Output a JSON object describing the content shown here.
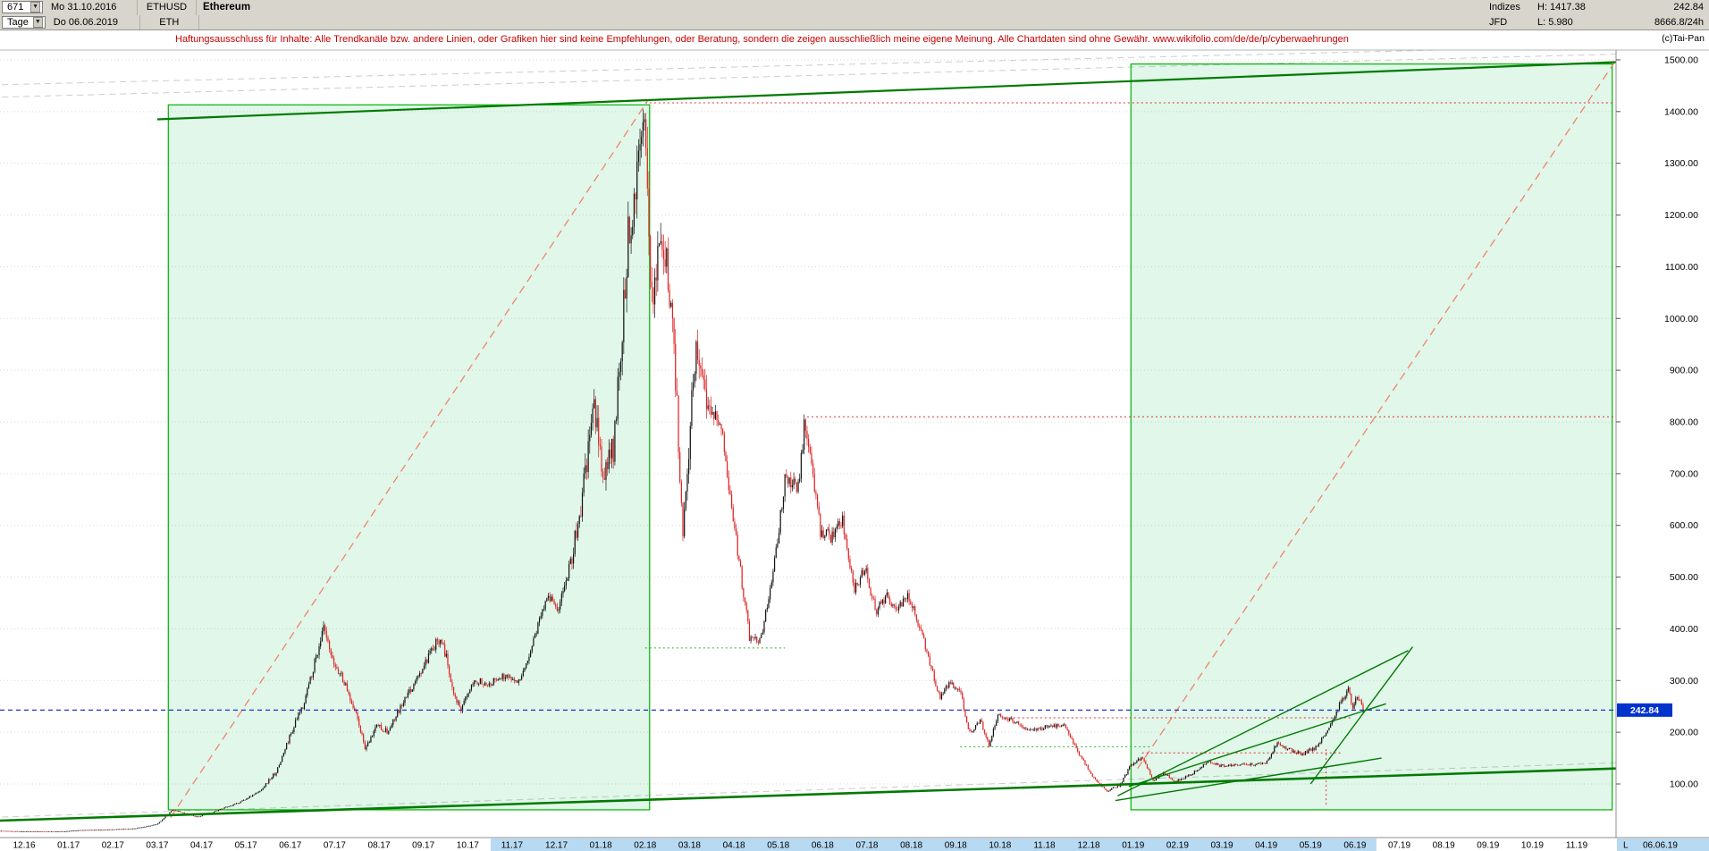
{
  "header": {
    "bars_count": "671",
    "start_date": "Mo 31.10.2016",
    "symbol": "ETHUSD",
    "name": "Ethereum",
    "timeframe": "Tage",
    "end_date": "Do 06.06.2019",
    "symbol_short": "ETH",
    "group": "Indizes",
    "high": "H: 1417.38",
    "feed": "JFD",
    "low": "L: 5.980",
    "last_price": "242.84",
    "volume": "8666.8/24h"
  },
  "disclaimer": "Haftungsausschluss für Inhalte: Alle Trendkanäle bzw. andere Linien, oder Grafiken hier sind keine Empfehlungen, oder Beratung, sondern die zeigen ausschließlich meine eigene Meinung. Alle Chartdaten sind ohne Gewähr.  www.wikifolio.com/de/de/p/cyberwaehrungen",
  "copyright": "(c)Tai-Pan",
  "chart_data": {
    "type": "candlestick",
    "symbol": "ETHUSD",
    "timeframe": "daily",
    "bars": 671,
    "period_high": 1417.38,
    "period_low": 5.98,
    "last_price": 242.84,
    "y_axis": {
      "min": 0,
      "max": 1520,
      "tick_step": 100,
      "ticks": [
        100,
        200,
        300,
        400,
        500,
        600,
        700,
        800,
        900,
        1000,
        1100,
        1200,
        1300,
        1400,
        1500
      ]
    },
    "x_axis": {
      "labels": [
        "12.16",
        "01.17",
        "02.17",
        "03.17",
        "04.17",
        "05.17",
        "06.17",
        "07.17",
        "08.17",
        "09.17",
        "10.17",
        "11.17",
        "12.17",
        "01.18",
        "02.18",
        "03.18",
        "04.18",
        "05.18",
        "06.18",
        "07.18",
        "08.18",
        "09.18",
        "10.18",
        "11.18",
        "12.18",
        "01.19",
        "02.19",
        "03.19",
        "04.19",
        "05.19",
        "06.19",
        "07.19",
        "08.19",
        "09.19",
        "10.19",
        "11.19"
      ],
      "highlight_from_index": 11,
      "highlight_to_index": 30,
      "last_marker": "L",
      "last_date": "06.06.19"
    },
    "price_path": [
      [
        -0.6,
        9.5
      ],
      [
        0,
        8.2
      ],
      [
        0.9,
        8.3
      ],
      [
        1.2,
        10.5
      ],
      [
        2.0,
        12
      ],
      [
        2.5,
        14
      ],
      [
        3.0,
        22
      ],
      [
        3.35,
        50
      ],
      [
        3.6,
        44
      ],
      [
        3.9,
        36
      ],
      [
        4.3,
        47
      ],
      [
        4.8,
        62
      ],
      [
        5.3,
        85
      ],
      [
        5.7,
        125
      ],
      [
        6.0,
        195
      ],
      [
        6.3,
        255
      ],
      [
        6.75,
        400
      ],
      [
        6.95,
        335
      ],
      [
        7.15,
        310
      ],
      [
        7.45,
        245
      ],
      [
        7.7,
        165
      ],
      [
        7.95,
        215
      ],
      [
        8.2,
        200
      ],
      [
        8.6,
        265
      ],
      [
        9.0,
        325
      ],
      [
        9.4,
        388
      ],
      [
        9.65,
        290
      ],
      [
        9.85,
        238
      ],
      [
        10.1,
        300
      ],
      [
        10.5,
        295
      ],
      [
        10.85,
        310
      ],
      [
        11.2,
        298
      ],
      [
        11.8,
        470
      ],
      [
        12.05,
        435
      ],
      [
        12.5,
        600
      ],
      [
        12.85,
        830
      ],
      [
        13.05,
        695
      ],
      [
        13.3,
        750
      ],
      [
        13.6,
        1140
      ],
      [
        13.95,
        1400
      ],
      [
        14.15,
        1045
      ],
      [
        14.35,
        1165
      ],
      [
        14.6,
        1030
      ],
      [
        14.85,
        590
      ],
      [
        15.15,
        960
      ],
      [
        15.4,
        850
      ],
      [
        15.7,
        795
      ],
      [
        16.0,
        605
      ],
      [
        16.35,
        385
      ],
      [
        16.6,
        378
      ],
      [
        16.9,
        515
      ],
      [
        17.15,
        690
      ],
      [
        17.45,
        675
      ],
      [
        17.6,
        805
      ],
      [
        17.95,
        590
      ],
      [
        18.2,
        575
      ],
      [
        18.45,
        610
      ],
      [
        18.7,
        475
      ],
      [
        18.95,
        520
      ],
      [
        19.2,
        435
      ],
      [
        19.45,
        465
      ],
      [
        19.7,
        435
      ],
      [
        19.9,
        470
      ],
      [
        20.15,
        415
      ],
      [
        20.4,
        340
      ],
      [
        20.65,
        265
      ],
      [
        20.85,
        295
      ],
      [
        21.1,
        285
      ],
      [
        21.3,
        197
      ],
      [
        21.55,
        225
      ],
      [
        21.75,
        175
      ],
      [
        21.95,
        235
      ],
      [
        22.3,
        222
      ],
      [
        22.7,
        203
      ],
      [
        23.1,
        212
      ],
      [
        23.45,
        213
      ],
      [
        23.65,
        178
      ],
      [
        23.9,
        140
      ],
      [
        24.15,
        108
      ],
      [
        24.4,
        86
      ],
      [
        24.7,
        97
      ],
      [
        24.95,
        137
      ],
      [
        25.2,
        152
      ],
      [
        25.45,
        107
      ],
      [
        25.7,
        122
      ],
      [
        25.95,
        104
      ],
      [
        26.3,
        118
      ],
      [
        26.7,
        146
      ],
      [
        26.95,
        135
      ],
      [
        27.3,
        138
      ],
      [
        27.7,
        137
      ],
      [
        28.0,
        142
      ],
      [
        28.25,
        178
      ],
      [
        28.5,
        167
      ],
      [
        28.8,
        157
      ],
      [
        29.1,
        170
      ],
      [
        29.4,
        205
      ],
      [
        29.65,
        255
      ],
      [
        29.85,
        283
      ],
      [
        29.95,
        248
      ],
      [
        30.05,
        268
      ],
      [
        30.2,
        243
      ]
    ],
    "overlays": {
      "boxes": [
        {
          "t1": 3.25,
          "p1": 50,
          "t2": 14.1,
          "p2": 1413
        },
        {
          "t1": 24.95,
          "p1": 50,
          "t2": 35.8,
          "p2": 1492
        }
      ],
      "green_lines": [
        {
          "t1": 3.0,
          "p1": 1385,
          "t2": 36.3,
          "p2": 1497,
          "w": 2.2
        },
        {
          "t1": -0.6,
          "p1": 29,
          "t2": 36.3,
          "p2": 131,
          "w": 2.6
        },
        {
          "t1": 24.65,
          "p1": 77,
          "t2": 31.2,
          "p2": 358,
          "w": 1.4
        },
        {
          "t1": 24.9,
          "p1": 95,
          "t2": 30.7,
          "p2": 255,
          "w": 1.4
        },
        {
          "t1": 24.6,
          "p1": 68,
          "t2": 30.6,
          "p2": 150,
          "w": 1.4
        },
        {
          "t1": 29.0,
          "p1": 100,
          "t2": 31.3,
          "p2": 365,
          "w": 1.4
        }
      ],
      "red_dashed_lines": [
        {
          "t1": 3.3,
          "p1": 35,
          "t2": 14.05,
          "p2": 1420
        },
        {
          "t1": 25.1,
          "p1": 130,
          "t2": 35.85,
          "p2": 1495
        }
      ],
      "gray_dashed_lines": [
        {
          "t1": -0.5,
          "p1": 1428,
          "t2": 36.3,
          "p2": 1512
        },
        {
          "t1": -0.5,
          "p1": 1452,
          "t2": 36.3,
          "p2": 1528
        },
        {
          "t1": -0.5,
          "p1": 36,
          "t2": 36.3,
          "p2": 142
        }
      ],
      "dotted_levels": [
        {
          "p": 1417,
          "t1": 14.0,
          "t2": 35.85,
          "color": "#e03030"
        },
        {
          "p": 810,
          "t1": 17.65,
          "t2": 35.85,
          "color": "#e03030"
        },
        {
          "p": 228,
          "t1": 22.2,
          "t2": 29.9,
          "color": "#e03030"
        },
        {
          "p": 160,
          "t1": 25.2,
          "t2": 29.7,
          "color": "#e03030"
        },
        {
          "p": 363,
          "t1": 14.0,
          "t2": 17.15,
          "color": "#2fae2f"
        },
        {
          "p": 172,
          "t1": 21.1,
          "t2": 25.4,
          "color": "#2fae2f"
        }
      ],
      "red_vline": {
        "t": 29.35,
        "p1": 60,
        "p2": 170
      },
      "current_price_line": {
        "price": 242.84
      }
    },
    "colors": {
      "up": "#111111",
      "down": "#dd2222",
      "box_fill": "rgba(0,190,80,0.12)",
      "box_border": "#00b400",
      "trend": "#007a00",
      "red_dashed": "#f08468",
      "grid": "#d9d9d9",
      "gray_dashed": "#cccccc",
      "blue_line": "#2233cc",
      "badge_bg": "#0033cc",
      "axis_highlight": "#b8d9f2"
    }
  }
}
